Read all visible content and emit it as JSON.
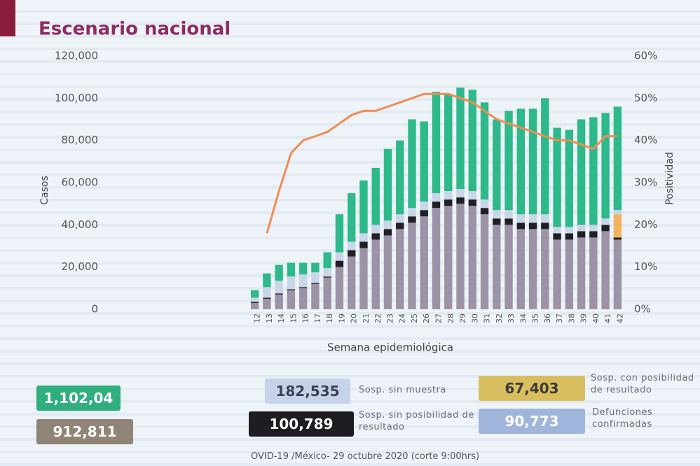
{
  "title": "Escenario nacional",
  "chart_data": {
    "type": "bar",
    "stacked": true,
    "ylabel": "Casos",
    "y2label": "Positividad",
    "xlabel": "Semana epidemiológica",
    "categories": [
      "12",
      "13",
      "14",
      "15",
      "16",
      "17",
      "18",
      "19",
      "20",
      "21",
      "22",
      "23",
      "24",
      "25",
      "26",
      "27",
      "28",
      "29",
      "30",
      "31",
      "32",
      "33",
      "34",
      "35",
      "36",
      "37",
      "38",
      "39",
      "40",
      "41",
      "42"
    ],
    "series": [
      {
        "color": "#9d93a6",
        "values": [
          3000,
          5000,
          7000,
          9000,
          10000,
          12000,
          15000,
          20000,
          25000,
          29000,
          33000,
          35000,
          38000,
          41000,
          44000,
          48000,
          49000,
          50000,
          49000,
          45000,
          40000,
          40000,
          38000,
          38000,
          38000,
          33000,
          33000,
          34000,
          34000,
          37000,
          33000
        ]
      },
      {
        "color": "#1f1f24",
        "values": [
          500,
          500,
          500,
          500,
          500,
          500,
          500,
          3000,
          3000,
          3000,
          3000,
          3000,
          3000,
          3000,
          3000,
          3000,
          3000,
          3000,
          3000,
          3000,
          3000,
          3000,
          3000,
          3000,
          3000,
          3000,
          3000,
          3000,
          3000,
          3000,
          1000
        ]
      },
      {
        "color": "#f2b35e",
        "values": [
          null,
          null,
          null,
          null,
          null,
          null,
          null,
          null,
          null,
          null,
          null,
          null,
          null,
          null,
          null,
          null,
          null,
          null,
          null,
          null,
          null,
          null,
          null,
          null,
          null,
          null,
          null,
          null,
          null,
          null,
          11000
        ]
      },
      {
        "color": "#c9d5e8",
        "values": [
          2000,
          5000,
          6000,
          6000,
          6000,
          5000,
          4000,
          4000,
          4000,
          4000,
          4000,
          4000,
          4000,
          4000,
          4000,
          4000,
          4000,
          4000,
          4000,
          4000,
          4000,
          4000,
          4000,
          4000,
          4000,
          3000,
          3000,
          3000,
          3000,
          3000,
          2000
        ]
      },
      {
        "color": "#2db98a",
        "values": [
          3500,
          6500,
          7500,
          6500,
          5500,
          4500,
          7500,
          18000,
          23000,
          25000,
          27000,
          34000,
          35000,
          42000,
          38000,
          48000,
          46000,
          48000,
          48000,
          46000,
          43000,
          47000,
          50000,
          50000,
          55000,
          47000,
          46000,
          50000,
          51000,
          50000,
          49000
        ]
      },
      {
        "color": "#f08c55",
        "type": "line",
        "axis": "y2",
        "values": [
          null,
          18,
          28,
          37,
          40,
          41,
          42,
          44,
          46,
          47,
          47,
          48,
          49,
          50,
          51,
          51,
          51,
          50,
          49,
          47,
          45,
          44,
          43,
          42,
          41,
          40,
          40,
          39,
          38,
          41,
          41
        ]
      }
    ],
    "ylim": [
      0,
      120000
    ],
    "yticks": [
      0,
      {
        "value": 20000,
        "label": "20,000"
      },
      {
        "value": 40000,
        "label": "40,000"
      },
      {
        "value": 60000,
        "label": "60,000"
      },
      {
        "value": 80000,
        "label": "80,000"
      },
      {
        "value": 100000,
        "label": "100,000"
      },
      {
        "value": 120000,
        "label": "120,000"
      }
    ],
    "y2lim": [
      0,
      60
    ],
    "y2ticks": [
      {
        "value": 0,
        "label": "0%"
      },
      {
        "value": 10,
        "label": "10%"
      },
      {
        "value": 20,
        "label": "20%"
      },
      {
        "value": 30,
        "label": "30%"
      },
      {
        "value": 40,
        "label": "40%"
      },
      {
        "value": 50,
        "label": "50%"
      },
      {
        "value": 60,
        "label": "60%"
      }
    ]
  },
  "cards": [
    {
      "value": "1,102,04"
    },
    {
      "value": "912,811"
    },
    {
      "value": "182,535",
      "label": "Sosp. sin muestra"
    },
    {
      "value": "100,789",
      "label": "Sosp. sin posibilidad de resultado"
    },
    {
      "value": "67,403",
      "label": "Sosp. con posibilidad de resultado"
    },
    {
      "value": "90,773",
      "label": "Defunciones confirmadas"
    }
  ],
  "footer": "OVID-19 /México- 29 octubre 2020 (corte 9:00hrs)"
}
